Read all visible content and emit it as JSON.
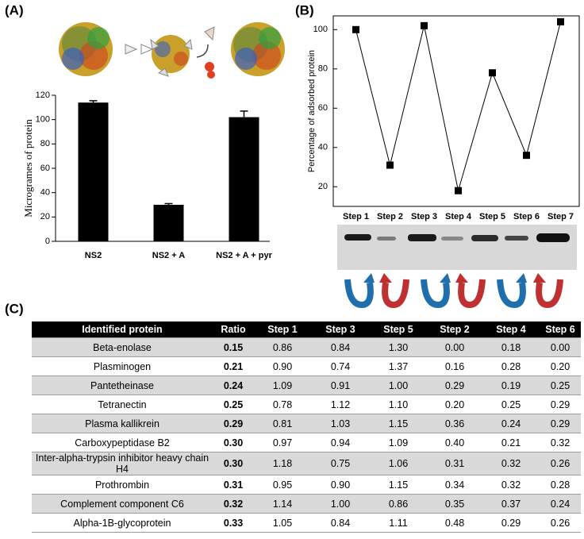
{
  "chart_data": [
    {
      "type": "bar",
      "panel_label": "(A)",
      "ylabel": "Microgrames of protein",
      "categories": [
        "NS2",
        "NS2 + A",
        "NS2 + A + pyr"
      ],
      "values": [
        114,
        30,
        102
      ],
      "errors": [
        1.5,
        1,
        5
      ],
      "color": "#000000",
      "ylim": [
        0,
        120
      ],
      "yticks": [
        0,
        20,
        40,
        60,
        80,
        100,
        120
      ],
      "grid": false
    },
    {
      "type": "line",
      "panel_label": "(B)",
      "ylabel": "Percentage of adsorbed protein",
      "categories": [
        "Step 1",
        "Step 2",
        "Step 3",
        "Step 4",
        "Step 5",
        "Step 6",
        "Step 7"
      ],
      "values": [
        100,
        31,
        102,
        18,
        78,
        36,
        104
      ],
      "color": "#000000",
      "ylim": [
        10,
        107
      ],
      "yticks": [
        20,
        40,
        60,
        80,
        100
      ],
      "grid": false
    }
  ],
  "table": {
    "panel_label": "(C)",
    "header": [
      "Identified protein",
      "Ratio",
      "Step 1",
      "Step 3",
      "Step 5",
      "Step 2",
      "Step 4",
      "Step 6"
    ],
    "rows": [
      [
        "Beta-enolase",
        "0.15",
        "0.86",
        "0.84",
        "1.30",
        "0.00",
        "0.18",
        "0.00"
      ],
      [
        "Plasminogen",
        "0.21",
        "0.90",
        "0.74",
        "1.37",
        "0.16",
        "0.28",
        "0.20"
      ],
      [
        "Pantetheinase",
        "0.24",
        "1.09",
        "0.91",
        "1.00",
        "0.29",
        "0.19",
        "0.25"
      ],
      [
        "Tetranectin",
        "0.25",
        "0.78",
        "1.12",
        "1.10",
        "0.20",
        "0.25",
        "0.29"
      ],
      [
        "Plasma kallikrein",
        "0.29",
        "0.81",
        "1.03",
        "1.15",
        "0.36",
        "0.24",
        "0.29"
      ],
      [
        "Carboxypeptidase B2",
        "0.30",
        "0.97",
        "0.94",
        "1.09",
        "0.40",
        "0.21",
        "0.32"
      ],
      [
        "Inter-alpha-trypsin inhibitor heavy chain H4",
        "0.30",
        "1.18",
        "0.75",
        "1.06",
        "0.31",
        "0.32",
        "0.26"
      ],
      [
        "Prothrombin",
        "0.31",
        "0.95",
        "0.90",
        "1.15",
        "0.34",
        "0.32",
        "0.28"
      ],
      [
        "Complement component C6",
        "0.32",
        "1.14",
        "1.00",
        "0.86",
        "0.35",
        "0.37",
        "0.24"
      ],
      [
        "Alpha-1B-glycoprotein",
        "0.33",
        "1.05",
        "0.84",
        "1.11",
        "0.48",
        "0.29",
        "0.26"
      ]
    ]
  }
}
